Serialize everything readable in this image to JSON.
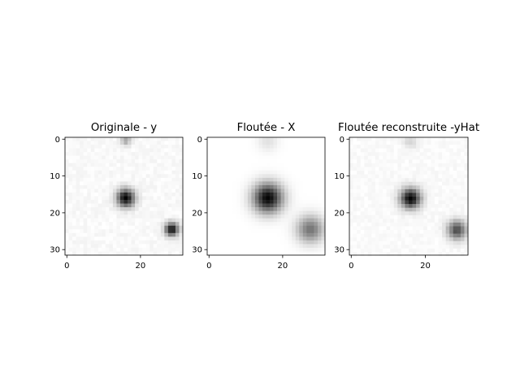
{
  "chart_data": [
    {
      "type": "heatmap",
      "title": "Originale - y",
      "xlabel": "",
      "ylabel": "",
      "xlim": [
        -0.5,
        31.5
      ],
      "ylim": [
        31.5,
        -0.5
      ],
      "x_ticks": [
        0,
        20
      ],
      "y_ticks": [
        0,
        10,
        20,
        30
      ],
      "colormap": "Greys",
      "blobs": [
        {
          "cx": 16,
          "cy": 16,
          "sigma": 1.7,
          "amp": 1.0
        },
        {
          "cx": 28.5,
          "cy": 24.5,
          "sigma": 1.3,
          "amp": 0.95
        },
        {
          "cx": 16,
          "cy": 0.3,
          "sigma": 1.0,
          "amp": 0.35
        }
      ],
      "noise": 0.05
    },
    {
      "type": "heatmap",
      "title": "Floutée - X",
      "xlabel": "",
      "ylabel": "",
      "xlim": [
        -0.5,
        31.5
      ],
      "ylim": [
        31.5,
        -0.5
      ],
      "x_ticks": [
        0,
        20
      ],
      "y_ticks": [
        0,
        10,
        20,
        30
      ],
      "colormap": "Greys",
      "blobs": [
        {
          "cx": 16,
          "cy": 16,
          "sigma": 2.8,
          "amp": 1.0
        },
        {
          "cx": 27.5,
          "cy": 24.5,
          "sigma": 2.6,
          "amp": 0.55
        },
        {
          "cx": 16,
          "cy": 0.5,
          "sigma": 2.0,
          "amp": 0.12
        }
      ],
      "noise": 0.0
    },
    {
      "type": "heatmap",
      "title": "Floutée reconstruite -yHat",
      "xlabel": "",
      "ylabel": "",
      "xlim": [
        -0.5,
        31.5
      ],
      "ylim": [
        31.5,
        -0.5
      ],
      "x_ticks": [
        0,
        20
      ],
      "y_ticks": [
        0,
        10,
        20,
        30
      ],
      "colormap": "Greys",
      "blobs": [
        {
          "cx": 16,
          "cy": 16,
          "sigma": 1.9,
          "amp": 1.0
        },
        {
          "cx": 28.5,
          "cy": 24.5,
          "sigma": 1.8,
          "amp": 0.7
        },
        {
          "cx": 16,
          "cy": 0.5,
          "sigma": 1.4,
          "amp": 0.15
        }
      ],
      "noise": 0.04
    }
  ]
}
